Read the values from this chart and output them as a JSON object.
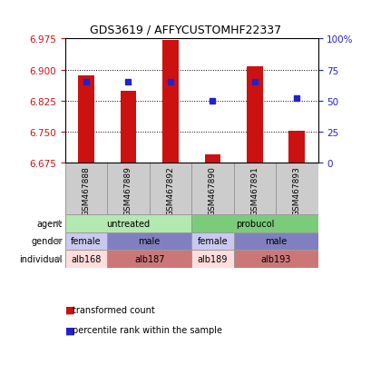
{
  "title": "GDS3619 / AFFYCUSTOMHF22337",
  "samples": [
    "GSM467888",
    "GSM467889",
    "GSM467892",
    "GSM467890",
    "GSM467891",
    "GSM467893"
  ],
  "red_values": [
    6.885,
    6.848,
    6.972,
    6.693,
    6.908,
    6.752
  ],
  "blue_percentiles": [
    65,
    65,
    65,
    50,
    65,
    52
  ],
  "y_min": 6.675,
  "y_max": 6.975,
  "y_ticks_left": [
    6.675,
    6.75,
    6.825,
    6.9,
    6.975
  ],
  "y_ticks_right": [
    0,
    25,
    50,
    75,
    100
  ],
  "agent_entries": [
    {
      "text": "untreated",
      "start": 0,
      "end": 3,
      "color": "#b3e8b0"
    },
    {
      "text": "probucol",
      "start": 3,
      "end": 6,
      "color": "#7acc7a"
    }
  ],
  "gender_entries": [
    {
      "text": "female",
      "start": 0,
      "end": 1,
      "color": "#c8c8f0"
    },
    {
      "text": "male",
      "start": 1,
      "end": 3,
      "color": "#8080c0"
    },
    {
      "text": "female",
      "start": 3,
      "end": 4,
      "color": "#c8c8f0"
    },
    {
      "text": "male",
      "start": 4,
      "end": 6,
      "color": "#8080c0"
    }
  ],
  "individual_entries": [
    {
      "text": "alb168",
      "start": 0,
      "end": 1,
      "color": "#ffdddd"
    },
    {
      "text": "alb187",
      "start": 1,
      "end": 3,
      "color": "#cc7777"
    },
    {
      "text": "alb189",
      "start": 3,
      "end": 4,
      "color": "#ffdddd"
    },
    {
      "text": "alb193",
      "start": 4,
      "end": 6,
      "color": "#cc7777"
    }
  ],
  "bar_color": "#cc1111",
  "dot_color": "#2222cc",
  "left_axis_color": "#cc1111",
  "right_axis_color": "#2222cc",
  "sample_bg": "#cccccc",
  "row_labels": [
    "agent",
    "gender",
    "individual"
  ],
  "legend_red": "transformed count",
  "legend_blue": "percentile rank within the sample"
}
